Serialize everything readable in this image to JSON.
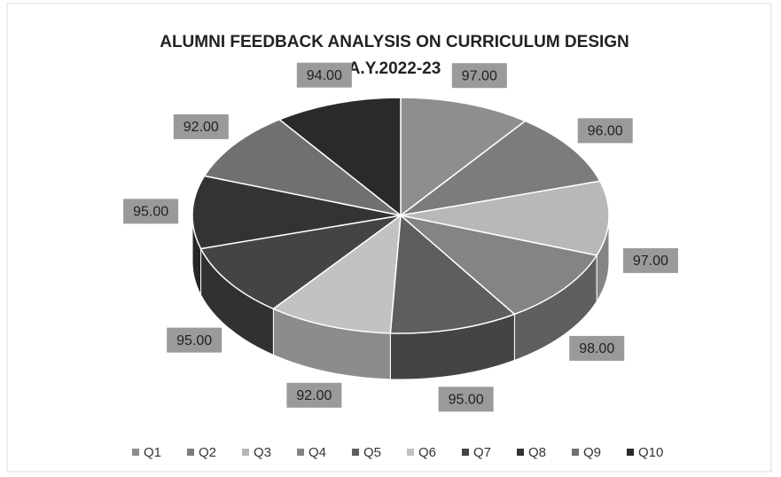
{
  "chart_data": {
    "type": "pie",
    "title": "ALUMNI FEEDBACK ANALYSIS ON CURRICULUM DESIGN",
    "subtitle": "A.Y.2022-23",
    "categories": [
      "Q1",
      "Q2",
      "Q3",
      "Q4",
      "Q5",
      "Q6",
      "Q7",
      "Q8",
      "Q9",
      "Q10"
    ],
    "values": [
      97,
      96,
      97,
      98,
      95,
      92,
      95,
      95,
      92,
      94
    ],
    "value_labels": [
      "97.00",
      "96.00",
      "97.00",
      "98.00",
      "95.00",
      "92.00",
      "95.00",
      "95.00",
      "92.00",
      "94.00"
    ],
    "colors": [
      "#8e8e8e",
      "#7c7c7c",
      "#b8b8b8",
      "#848484",
      "#5e5e5e",
      "#c2c2c2",
      "#444444",
      "#333333",
      "#707070",
      "#2a2a2a"
    ],
    "legend": "bottom"
  }
}
